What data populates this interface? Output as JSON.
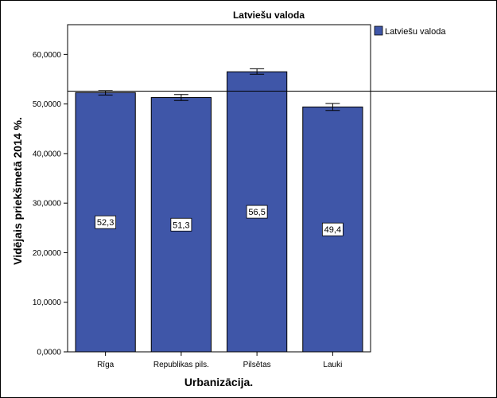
{
  "chart_data": {
    "type": "bar",
    "title": "Latviešu valoda",
    "xlabel": "Urbanizācija.",
    "ylabel": "Vidējais priekšmetā 2014 %.",
    "categories": [
      "Rīga",
      "Republikas pils.",
      "Pilsētas",
      "Lauki"
    ],
    "series": [
      {
        "name": "Latviešu valoda",
        "values": [
          52.3,
          51.3,
          56.5,
          49.4
        ],
        "data_labels": [
          "52,3",
          "51,3",
          "56,5",
          "49,4"
        ],
        "error_low": [
          51.8,
          50.7,
          56.0,
          48.7
        ],
        "error_high": [
          52.7,
          51.9,
          57.1,
          50.1
        ],
        "color": "#3f56a8"
      }
    ],
    "reference_line": 52.6,
    "ylim": [
      0,
      66
    ],
    "yticks": [
      0,
      10,
      20,
      30,
      40,
      50,
      60
    ],
    "ytick_labels": [
      "0,0000",
      "10,0000",
      "20,0000",
      "30,0000",
      "40,0000",
      "50,0000",
      "60,0000"
    ],
    "grid": false,
    "legend_position": "top-right"
  }
}
